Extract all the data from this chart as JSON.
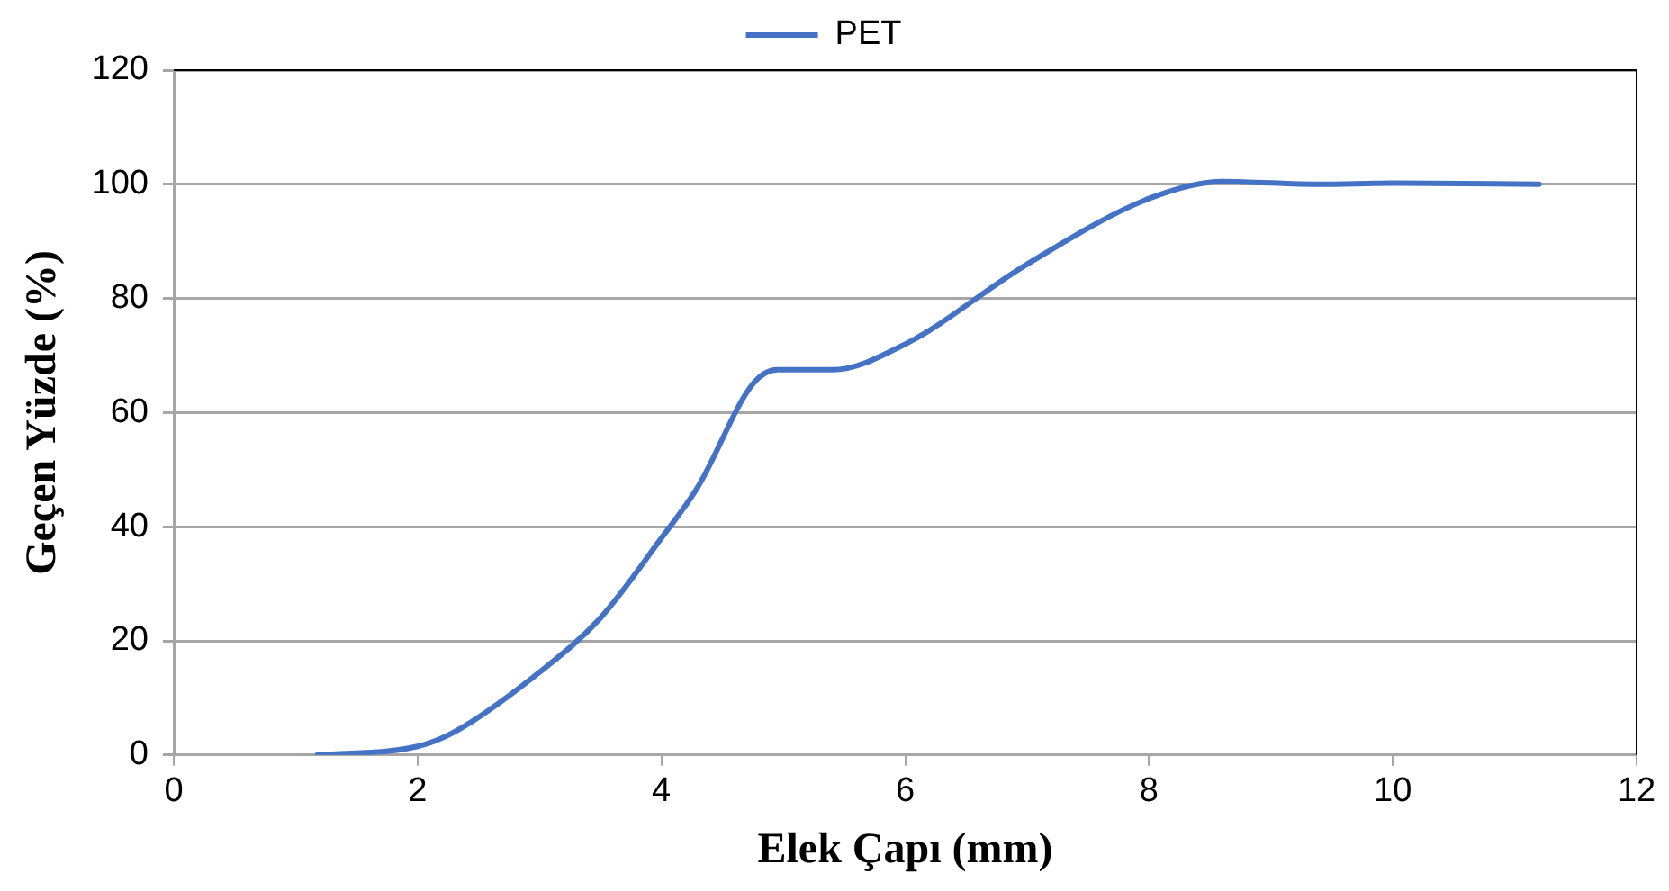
{
  "chart_data": {
    "type": "line",
    "xlabel": "Elek Çapı (mm)",
    "ylabel": "Geçen Yüzde (%)",
    "legend": "top",
    "grid": "y",
    "marker": "none",
    "line_style": "solid",
    "xlim": [
      0,
      12
    ],
    "xticks": [
      0,
      2,
      4,
      6,
      8,
      10,
      12
    ],
    "ylim": [
      0,
      120
    ],
    "yticks": [
      0,
      20,
      40,
      60,
      80,
      100,
      120
    ],
    "series": [
      {
        "name": "PET",
        "color": "#4472c4",
        "x": [
          1.18,
          2,
          2.3,
          3,
          3.5,
          4,
          4.3,
          4.75,
          4.95,
          5.4,
          6,
          7,
          8,
          8.6,
          9.4,
          10,
          11.2
        ],
        "values": [
          0,
          1.5,
          4,
          14.5,
          24,
          38,
          47,
          65,
          67.5,
          67.5,
          72,
          86,
          97.5,
          100.5,
          100,
          100.2,
          100
        ]
      }
    ]
  }
}
